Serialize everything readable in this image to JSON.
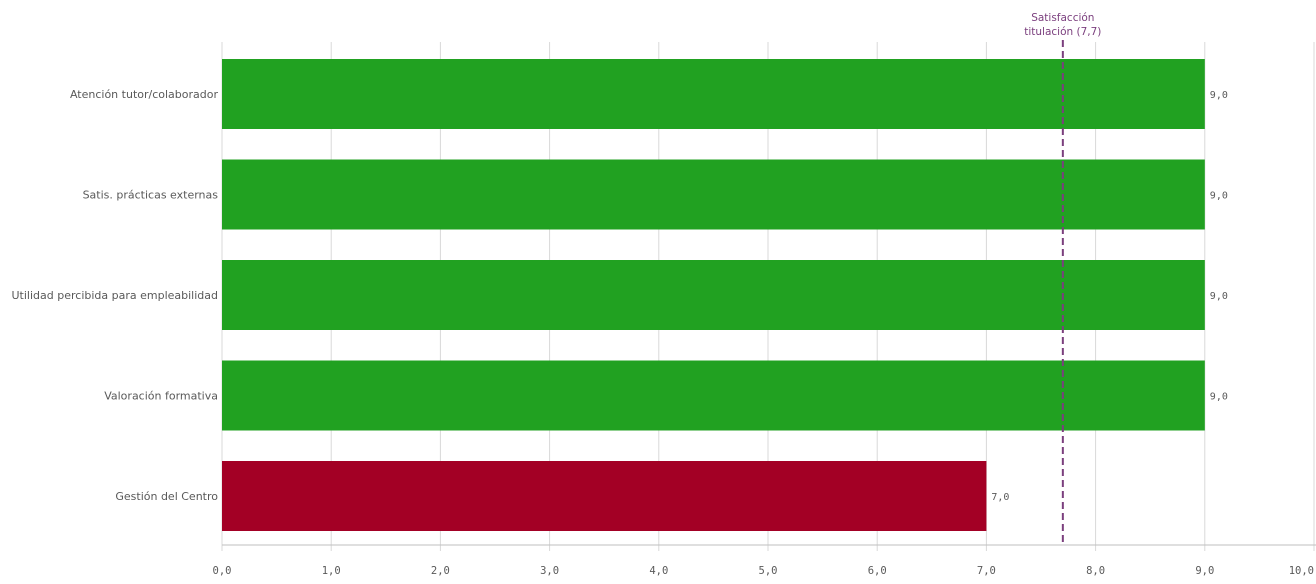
{
  "chart_data": {
    "type": "bar",
    "orientation": "horizontal",
    "categories": [
      "Atención tutor/colaborador",
      "Satis. prácticas externas",
      "Utilidad percibida para empleabilidad",
      "Valoración formativa",
      "Gestión del Centro"
    ],
    "values": [
      9.0,
      9.0,
      9.0,
      9.0,
      7.0
    ],
    "value_labels": [
      "9,0",
      "9,0",
      "9,0",
      "9,0",
      "7,0"
    ],
    "bar_colors": [
      "#21a121",
      "#21a121",
      "#21a121",
      "#21a121",
      "#a30025"
    ],
    "xlim": [
      0,
      10
    ],
    "x_ticks": [
      0,
      1,
      2,
      3,
      4,
      5,
      6,
      7,
      8,
      9,
      10
    ],
    "x_tick_labels": [
      "0,0",
      "1,0",
      "2,0",
      "3,0",
      "4,0",
      "5,0",
      "6,0",
      "7,0",
      "8,0",
      "9,0",
      "10,0"
    ],
    "grid": true,
    "reference_line": {
      "value": 7.7,
      "label_line1": "Satisfacción",
      "label_line2": "titulación (7,7)",
      "color": "#7b3f7e",
      "style": "dashed"
    }
  }
}
